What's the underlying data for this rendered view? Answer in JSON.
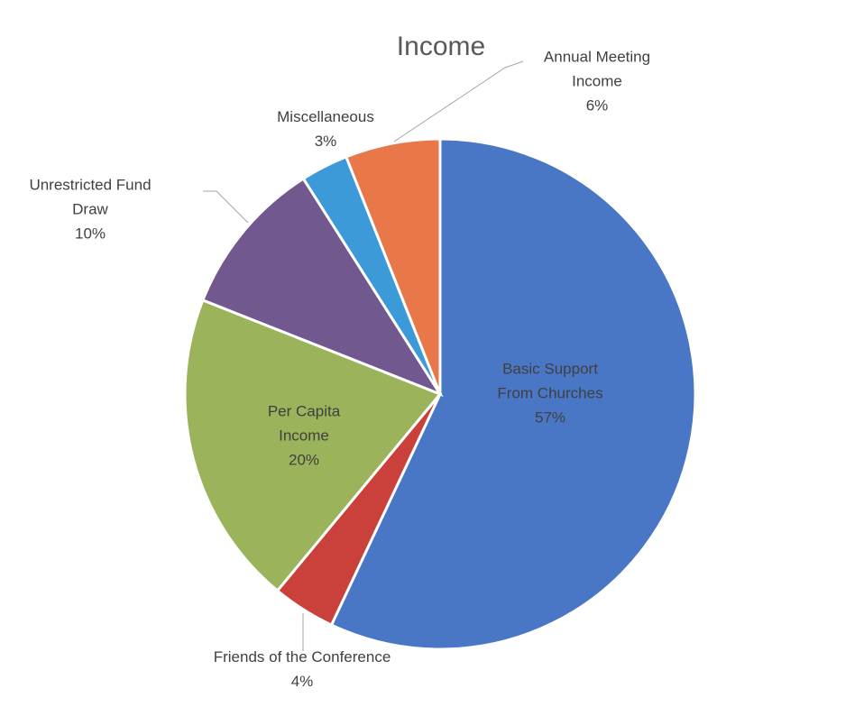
{
  "chart_data": {
    "type": "pie",
    "title": "Income",
    "categories": [
      "Basic Support From Churches",
      "Friends of the Conference",
      "Per Capita Income",
      "Unrestricted Fund Draw",
      "Miscellaneous",
      "Annual Meeting Income"
    ],
    "values": [
      57,
      4,
      20,
      10,
      3,
      6
    ],
    "value_labels": [
      "57%",
      "4%",
      "20%",
      "10%",
      "3%",
      "6%"
    ],
    "colors": [
      "#4a76c6",
      "#c9413a",
      "#9bb35a",
      "#71588f",
      "#3c9ad8",
      "#e8784a"
    ]
  }
}
